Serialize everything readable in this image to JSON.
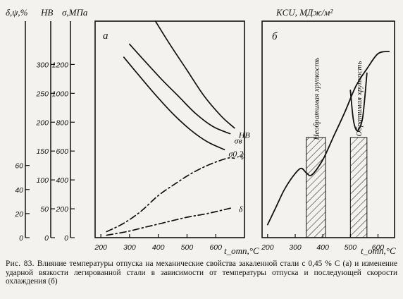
{
  "caption": {
    "prefix": "Рис. 83.",
    "text": "Влияние температуры отпуска на механические свойства закаленной стали с 0,45 % С (а) и изменение ударной вязкости легированной стали в зависимости от температуры отпуска и последующей скорости охлаждения (б)"
  },
  "chart_data": [
    {
      "type": "line",
      "panel_label": "а",
      "xlabel": "t_отп,°С",
      "x_ticks": [
        "200",
        "300",
        "400",
        "500",
        "600"
      ],
      "x_tick_values": [
        200,
        300,
        400,
        500,
        600
      ],
      "xlim": [
        180,
        700
      ],
      "y_axes": [
        {
          "label": "δ,ψ,%",
          "ticks": [
            "0",
            "20",
            "40",
            "60"
          ],
          "tick_values": [
            0,
            20,
            40,
            60
          ],
          "ylim": [
            0,
            180
          ]
        },
        {
          "label": "HB",
          "ticks": [
            "0",
            "50",
            "100",
            "150",
            "200",
            "250",
            "300"
          ],
          "tick_values": [
            0,
            50,
            100,
            150,
            200,
            250,
            300
          ],
          "ylim": [
            0,
            375
          ]
        },
        {
          "label": "σ,МПа",
          "ticks": [
            "0",
            "200",
            "400",
            "600",
            "800",
            "1000",
            "1200"
          ],
          "tick_values": [
            0,
            200,
            400,
            600,
            800,
            1000,
            1200
          ],
          "ylim": [
            0,
            1500
          ]
        }
      ],
      "series": [
        {
          "name": "ψ",
          "label_name": "ψ",
          "axis": "δ,ψ,%",
          "style": "dashdot",
          "x": [
            220,
            280,
            340,
            400,
            460,
            520,
            580,
            640,
            665
          ],
          "y": [
            5,
            12,
            22,
            35,
            45,
            54,
            61,
            66,
            66
          ]
        },
        {
          "name": "HB",
          "label_name": "HB",
          "axis": "HB",
          "style": "solid",
          "x": [
            390,
            440,
            500,
            560,
            620,
            665
          ],
          "y": [
            375,
            335,
            290,
            245,
            210,
            190
          ]
        },
        {
          "name": "σв",
          "label_name": "σв",
          "axis": "σ,МПа",
          "style": "solid",
          "x": [
            300,
            350,
            410,
            470,
            530,
            590,
            650
          ],
          "y": [
            1340,
            1230,
            1100,
            980,
            860,
            770,
            720
          ]
        },
        {
          "name": "σ0,2",
          "label_name": "σ0,2",
          "axis": "σ,МПа",
          "style": "solid",
          "x": [
            280,
            330,
            390,
            450,
            510,
            570,
            630
          ],
          "y": [
            1250,
            1130,
            990,
            860,
            750,
            665,
            610
          ]
        },
        {
          "name": "δ",
          "label_name": "δ",
          "axis": "δ,ψ,%",
          "style": "dashdot",
          "x": [
            220,
            290,
            360,
            430,
            500,
            570,
            660
          ],
          "y": [
            2,
            5,
            9,
            13,
            17,
            20,
            25
          ]
        }
      ]
    },
    {
      "type": "line",
      "panel_label": "б",
      "ylabel": "KCU, МДж/м²",
      "xlabel": "t_отп,°С",
      "x_ticks": [
        "200",
        "300",
        "400",
        "500",
        "600"
      ],
      "x_tick_values": [
        200,
        300,
        400,
        500,
        600
      ],
      "xlim": [
        180,
        660
      ],
      "y_ticks": [],
      "ylim": [
        0,
        1
      ],
      "zones": [
        {
          "label": "Необратимая хрупкость",
          "x_range": [
            340,
            410
          ]
        },
        {
          "label": "Обратимая хрупкость",
          "x_range": [
            500,
            560
          ]
        }
      ],
      "series": [
        {
          "name": "",
          "style": "solid",
          "x": [
            200,
            230,
            260,
            290,
            320,
            340,
            360,
            400,
            440,
            480,
            520,
            560,
            600,
            640
          ],
          "y": [
            0.06,
            0.14,
            0.22,
            0.28,
            0.32,
            0.3,
            0.29,
            0.36,
            0.47,
            0.58,
            0.7,
            0.78,
            0.85,
            0.86
          ]
        },
        {
          "name": "",
          "style": "solid",
          "x": [
            500,
            510,
            520,
            530,
            545,
            560
          ],
          "y": [
            0.68,
            0.55,
            0.5,
            0.5,
            0.56,
            0.76
          ]
        }
      ]
    }
  ]
}
